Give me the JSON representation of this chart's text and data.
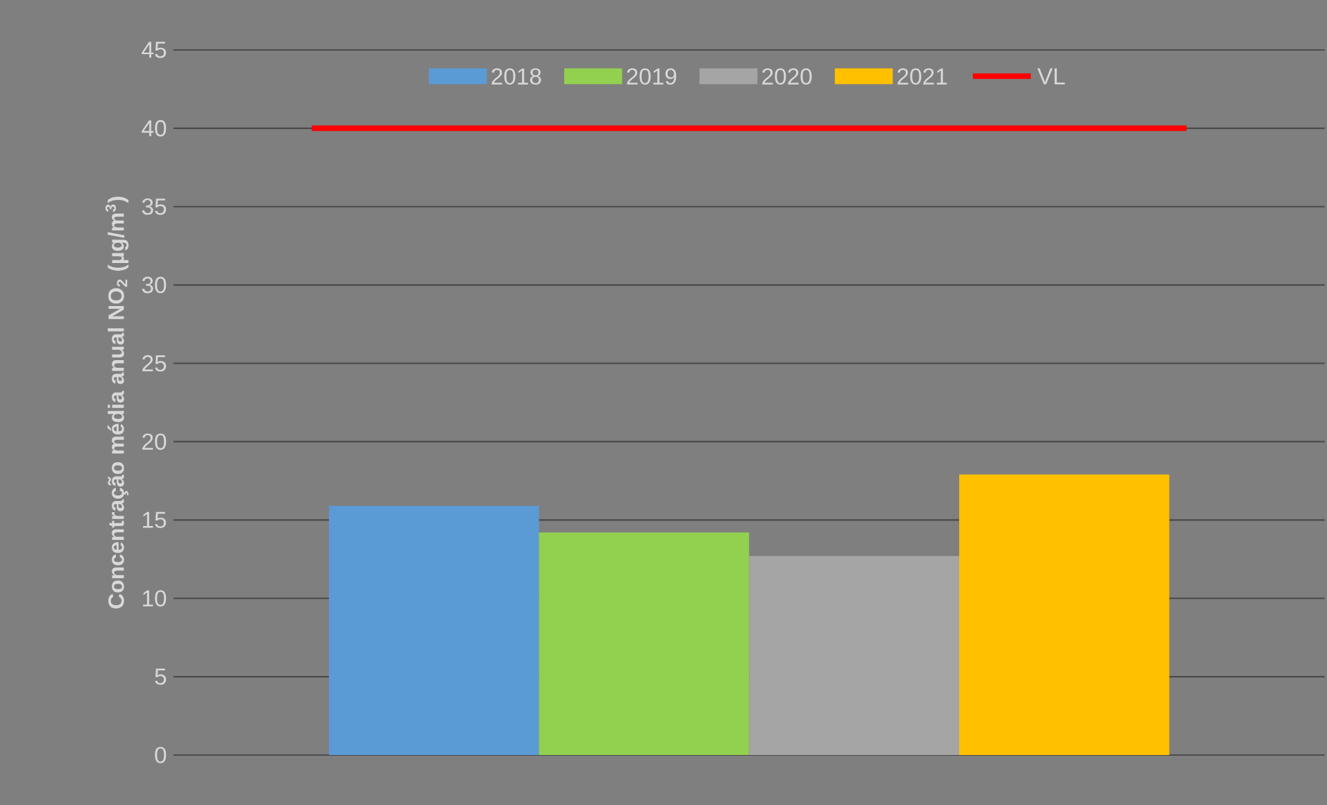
{
  "chart_data": {
    "type": "bar",
    "categories": [
      null
    ],
    "series": [
      {
        "name": "2018",
        "color": "#5b9bd5",
        "values": [
          15.9
        ]
      },
      {
        "name": "2019",
        "color": "#92d050",
        "values": [
          14.2
        ]
      },
      {
        "name": "2020",
        "color": "#a5a5a5",
        "values": [
          12.7
        ]
      },
      {
        "name": "2021",
        "color": "#ffc000",
        "values": [
          17.9
        ]
      }
    ],
    "ylim": [
      0,
      45
    ],
    "yticks": [
      0,
      5,
      10,
      15,
      20,
      25,
      30,
      35,
      40,
      45
    ],
    "grid": "y",
    "legend": "top",
    "tick_labels": "y",
    "ylabel": "Concentração média anual NO$_{2}$ (µg/m$^{3}$)",
    "ref_lines": [
      {
        "axis": "y",
        "value": 40,
        "label": "VL",
        "color": "#ff0000"
      }
    ]
  }
}
